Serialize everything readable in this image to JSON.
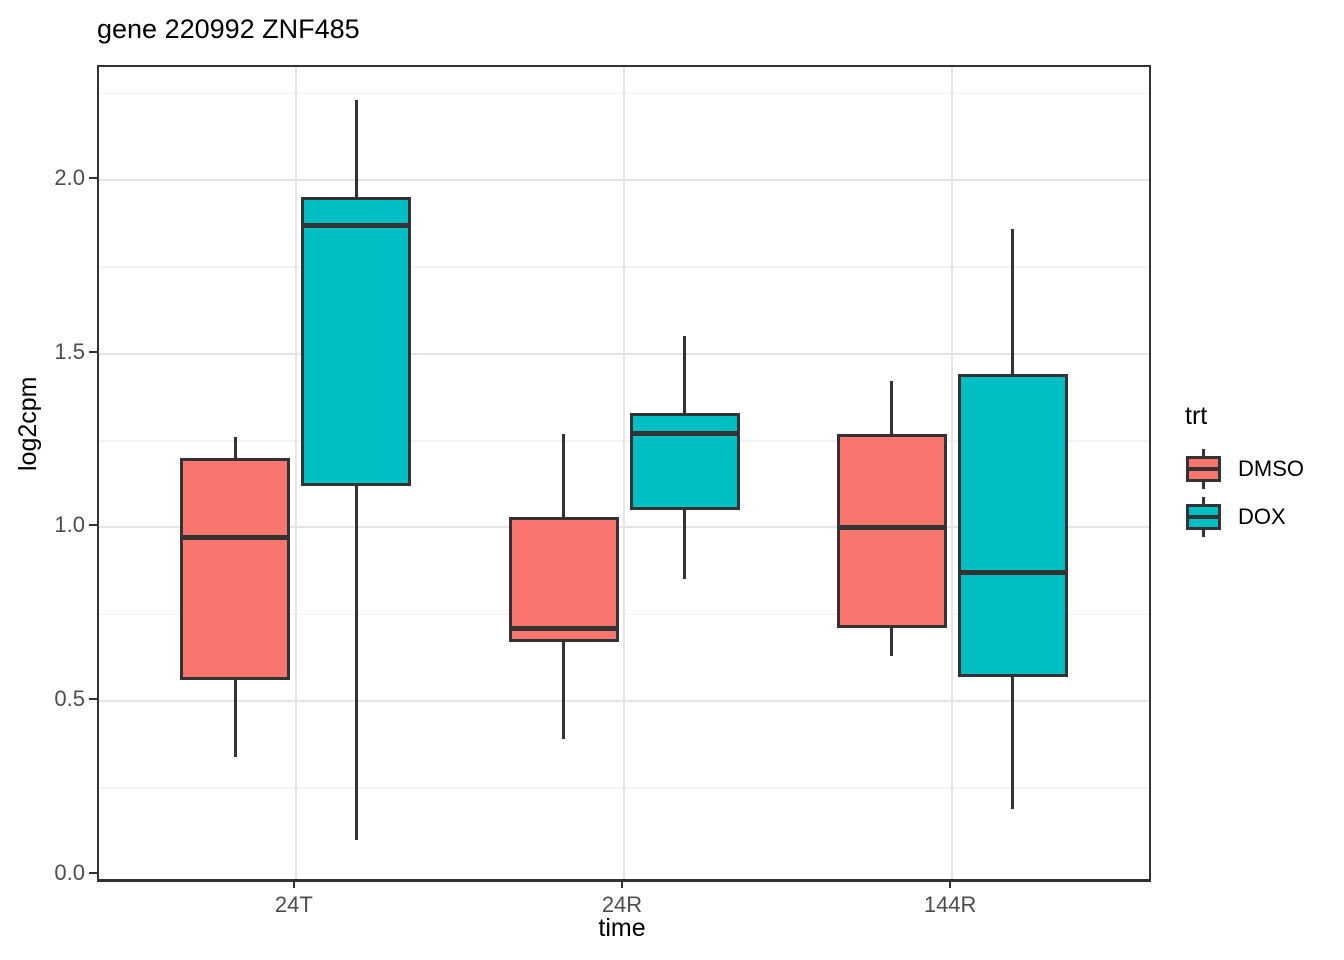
{
  "title": "gene 220992 ZNF485",
  "chart_data": {
    "type": "boxplot",
    "title": "gene 220992 ZNF485",
    "xlabel": "time",
    "ylabel": "log2cpm",
    "categories": [
      "24T",
      "24R",
      "144R"
    ],
    "y_tick_values": [
      0.0,
      0.5,
      1.0,
      1.5,
      2.0
    ],
    "y_tick_labels": [
      "0.0",
      "0.5",
      "1.0",
      "1.5",
      "2.0"
    ],
    "ylim": [
      -0.012,
      2.325
    ],
    "grid": {
      "major_y": [
        0.5,
        1.0,
        1.5,
        2.0
      ],
      "minor_y": [
        0.25,
        0.75,
        1.25,
        1.75,
        2.25
      ],
      "major_x_at_categories": true
    },
    "legend": {
      "title": "trt",
      "position": "right",
      "entries": [
        {
          "label": "DMSO",
          "color": "#F8766D"
        },
        {
          "label": "DOX",
          "color": "#00BFC4"
        }
      ]
    },
    "series": [
      {
        "name": "DMSO",
        "color": "#F8766D",
        "boxes": [
          {
            "category": "24T",
            "whisker_low": 0.34,
            "q1": 0.56,
            "median": 0.97,
            "q3": 1.2,
            "whisker_high": 1.26
          },
          {
            "category": "24R",
            "whisker_low": 0.39,
            "q1": 0.67,
            "median": 0.71,
            "q3": 1.03,
            "whisker_high": 1.27
          },
          {
            "category": "144R",
            "whisker_low": 0.63,
            "q1": 0.71,
            "median": 1.0,
            "q3": 1.27,
            "whisker_high": 1.42
          }
        ]
      },
      {
        "name": "DOX",
        "color": "#00BFC4",
        "boxes": [
          {
            "category": "24T",
            "whisker_low": 0.1,
            "q1": 1.12,
            "median": 1.87,
            "q3": 1.95,
            "whisker_high": 2.23
          },
          {
            "category": "24R",
            "whisker_low": 0.85,
            "q1": 1.05,
            "median": 1.27,
            "q3": 1.33,
            "whisker_high": 1.55
          },
          {
            "category": "144R",
            "whisker_low": 0.19,
            "q1": 0.57,
            "median": 0.87,
            "q3": 1.44,
            "whisker_high": 1.86
          }
        ]
      }
    ],
    "colors": {
      "box_stroke": "#333333",
      "grid_major": "#e5e5e5",
      "grid_minor": "#f2f2f2",
      "tick_label": "#4d4d4d",
      "panel_border": "#333333"
    }
  }
}
